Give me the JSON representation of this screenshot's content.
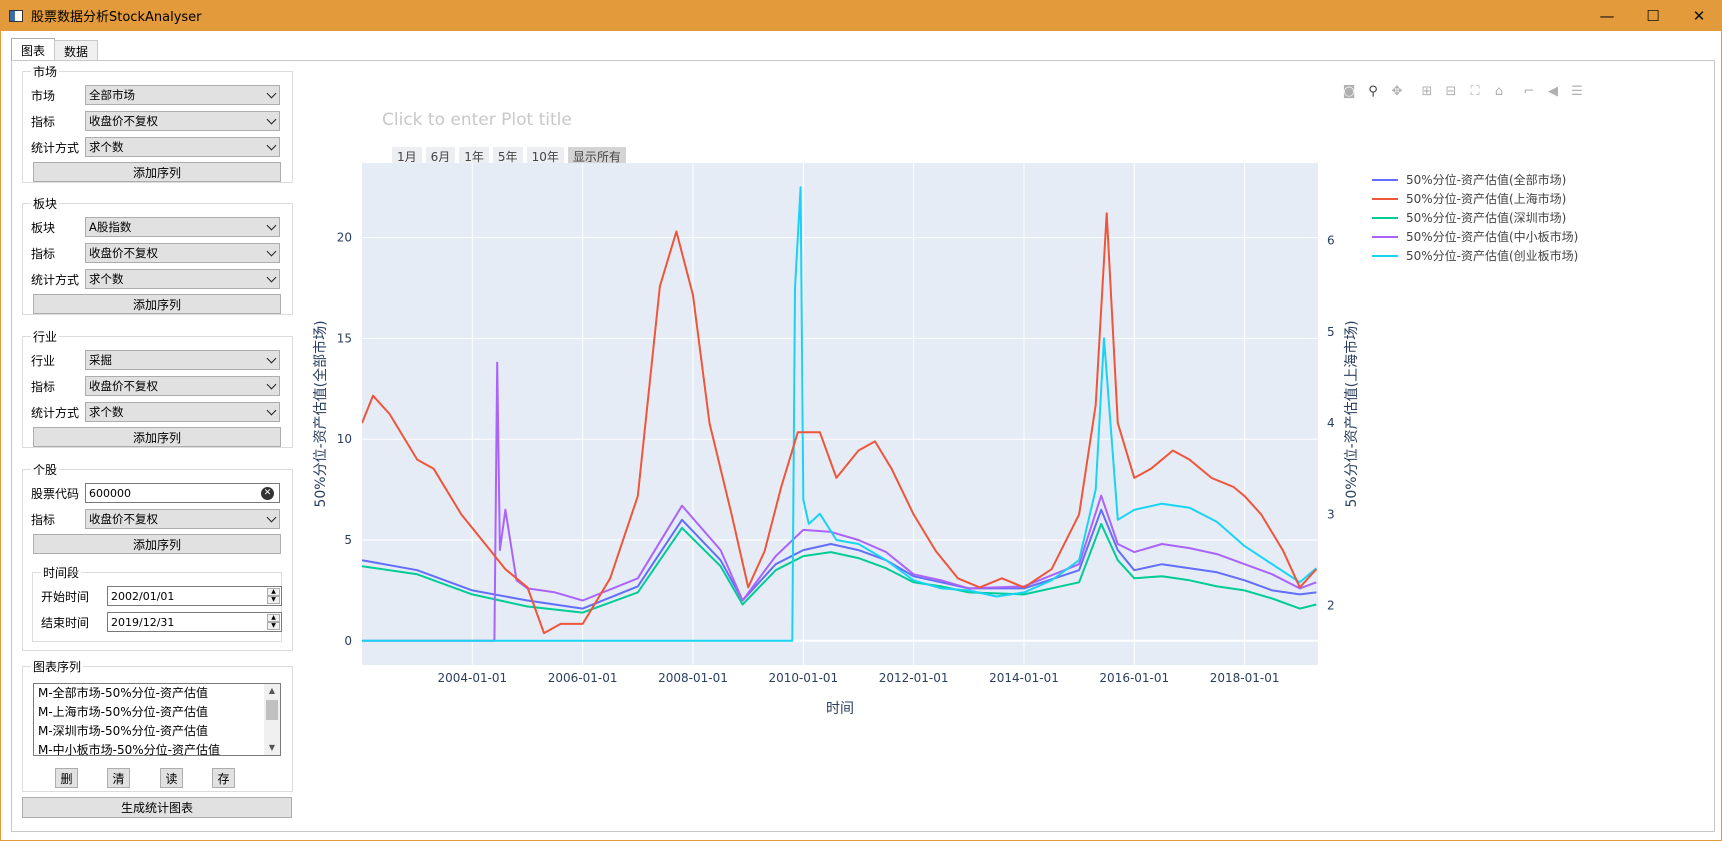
{
  "window": {
    "title": "股票数据分析StockAnalyser",
    "controls": [
      "—",
      "☐",
      "✕"
    ]
  },
  "tabs": [
    {
      "label": "图表"
    },
    {
      "label": "数据"
    }
  ],
  "market": {
    "title": "市场",
    "market_label": "市场",
    "market_value": "全部市场",
    "metric_label": "指标",
    "metric_value": "收盘价不复权",
    "stat_label": "统计方式",
    "stat_value": "求个数",
    "add_label": "添加序列"
  },
  "sector": {
    "title": "板块",
    "sector_label": "板块",
    "sector_value": "A股指数",
    "metric_label": "指标",
    "metric_value": "收盘价不复权",
    "stat_label": "统计方式",
    "stat_value": "求个数",
    "add_label": "添加序列"
  },
  "industry": {
    "title": "行业",
    "industry_label": "行业",
    "industry_value": "采掘",
    "metric_label": "指标",
    "metric_value": "收盘价不复权",
    "stat_label": "统计方式",
    "stat_value": "求个数",
    "add_label": "添加序列"
  },
  "stock": {
    "title": "个股",
    "code_label": "股票代码",
    "code_value": "600000",
    "metric_label": "指标",
    "metric_value": "收盘价不复权",
    "add_label": "添加序列"
  },
  "period": {
    "title": "时间段",
    "start_label": "开始时间",
    "start_value": "2002/01/01",
    "end_label": "结束时间",
    "end_value": "2019/12/31"
  },
  "series_list": {
    "title": "图表序列",
    "items": [
      "M-全部市场-50%分位-资产估值",
      "M-上海市场-50%分位-资产估值",
      "M-深圳市场-50%分位-资产估值",
      "M-中小板市场-50%分位-资产估值"
    ],
    "buttons": [
      "删",
      "清",
      "读",
      "存"
    ]
  },
  "generate_label": "生成统计图表",
  "plot": {
    "title_placeholder": "Click to enter Plot title",
    "range_buttons": [
      "1月",
      "6月",
      "1年",
      "5年",
      "10年",
      "显示所有"
    ],
    "modebar_icons": [
      "camera-icon",
      "zoom-icon",
      "pan-icon",
      "zoom-in-icon",
      "zoom-out-icon",
      "autoscale-icon",
      "home-icon",
      "spike-icon",
      "hover-closest-icon",
      "hover-compare-icon"
    ]
  },
  "chart_data": {
    "type": "line",
    "title": "",
    "xlabel": "时间",
    "ylabel": "50%分位-资产估值(全部市场)",
    "y2label": "50%分位-资产估值(上海市场)",
    "x_ticks": [
      "2004-01-01",
      "2006-01-01",
      "2008-01-01",
      "2010-01-01",
      "2012-01-01",
      "2014-01-01",
      "2016-01-01",
      "2018-01-01"
    ],
    "y_ticks": [
      "0",
      "5",
      "10",
      "15",
      "20"
    ],
    "y2_ticks": [
      "2",
      "3",
      "4",
      "5",
      "6"
    ],
    "ylim": [
      -1.2,
      23.7
    ],
    "y2lim": [
      1.35,
      6.85
    ],
    "x_range": [
      "2002-01-01",
      "2019-05-01"
    ],
    "legend_position": "top-right",
    "series": [
      {
        "name": "50%分位-资产估值(全部市场)",
        "color": "#636efa",
        "axis": "y",
        "x": [
          2002.0,
          2003.0,
          2004.0,
          2005.0,
          2006.0,
          2007.0,
          2007.8,
          2008.5,
          2008.9,
          2009.5,
          2010.0,
          2010.5,
          2011.0,
          2011.5,
          2012.0,
          2012.5,
          2013.0,
          2014.0,
          2015.0,
          2015.4,
          2015.7,
          2016.0,
          2016.5,
          2017.0,
          2017.5,
          2018.0,
          2018.5,
          2019.0,
          2019.3
        ],
        "values": [
          4.0,
          3.5,
          2.5,
          2.0,
          1.6,
          2.7,
          6.0,
          4.0,
          2.0,
          3.8,
          4.5,
          4.8,
          4.5,
          4.0,
          3.2,
          2.9,
          2.6,
          2.6,
          3.5,
          6.5,
          4.5,
          3.5,
          3.8,
          3.6,
          3.4,
          3.0,
          2.5,
          2.3,
          2.4
        ]
      },
      {
        "name": "50%分位-资产估值(上海市场)",
        "color": "#ef553b",
        "axis": "y2",
        "x": [
          2002.0,
          2002.2,
          2002.5,
          2003.0,
          2003.3,
          2003.8,
          2004.2,
          2004.6,
          2005.0,
          2005.3,
          2005.6,
          2006.0,
          2006.5,
          2007.0,
          2007.4,
          2007.7,
          2008.0,
          2008.3,
          2008.7,
          2009.0,
          2009.3,
          2009.6,
          2009.9,
          2010.3,
          2010.6,
          2011.0,
          2011.3,
          2011.6,
          2012.0,
          2012.4,
          2012.8,
          2013.2,
          2013.6,
          2014.0,
          2014.5,
          2015.0,
          2015.3,
          2015.5,
          2015.7,
          2016.0,
          2016.3,
          2016.7,
          2017.0,
          2017.4,
          2017.8,
          2018.0,
          2018.3,
          2018.7,
          2019.0,
          2019.3
        ],
        "values": [
          4.0,
          4.3,
          4.1,
          3.6,
          3.5,
          3.0,
          2.7,
          2.4,
          2.2,
          1.7,
          1.8,
          1.8,
          2.3,
          3.2,
          5.5,
          6.1,
          5.4,
          4.0,
          3.0,
          2.2,
          2.6,
          3.3,
          3.9,
          3.9,
          3.4,
          3.7,
          3.8,
          3.5,
          3.0,
          2.6,
          2.3,
          2.2,
          2.3,
          2.2,
          2.4,
          3.0,
          4.2,
          6.3,
          4.0,
          3.4,
          3.5,
          3.7,
          3.6,
          3.4,
          3.3,
          3.2,
          3.0,
          2.6,
          2.2,
          2.4
        ]
      },
      {
        "name": "50%分位-资产估值(深圳市场)",
        "color": "#00cc96",
        "axis": "y",
        "x": [
          2002.0,
          2003.0,
          2004.0,
          2005.0,
          2006.0,
          2007.0,
          2007.8,
          2008.5,
          2008.9,
          2009.5,
          2010.0,
          2010.5,
          2011.0,
          2011.5,
          2012.0,
          2012.5,
          2013.0,
          2014.0,
          2015.0,
          2015.4,
          2015.7,
          2016.0,
          2016.5,
          2017.0,
          2017.5,
          2018.0,
          2018.5,
          2019.0,
          2019.3
        ],
        "values": [
          3.7,
          3.3,
          2.3,
          1.7,
          1.4,
          2.4,
          5.6,
          3.7,
          1.8,
          3.5,
          4.2,
          4.4,
          4.1,
          3.6,
          2.9,
          2.7,
          2.4,
          2.3,
          2.9,
          5.8,
          4.0,
          3.1,
          3.2,
          3.0,
          2.7,
          2.5,
          2.1,
          1.6,
          1.8
        ]
      },
      {
        "name": "50%分位-资产估值(中小板市场)",
        "color": "#ab63fa",
        "axis": "y",
        "x": [
          2002.0,
          2004.4,
          2004.45,
          2004.5,
          2004.6,
          2004.8,
          2005.0,
          2005.5,
          2006.0,
          2007.0,
          2007.8,
          2008.5,
          2008.9,
          2009.5,
          2010.0,
          2010.5,
          2011.0,
          2011.5,
          2012.0,
          2012.5,
          2013.0,
          2014.0,
          2015.0,
          2015.4,
          2015.7,
          2016.0,
          2016.5,
          2017.0,
          2017.5,
          2018.0,
          2018.5,
          2019.0,
          2019.3
        ],
        "values": [
          0,
          0,
          13.8,
          4.5,
          6.5,
          3.0,
          2.6,
          2.4,
          2.0,
          3.1,
          6.7,
          4.5,
          2.0,
          4.2,
          5.5,
          5.4,
          5.0,
          4.4,
          3.3,
          3.0,
          2.6,
          2.7,
          3.8,
          7.2,
          4.8,
          4.4,
          4.8,
          4.6,
          4.3,
          3.8,
          3.3,
          2.6,
          2.9
        ]
      },
      {
        "name": "50%分位-资产估值(创业板市场)",
        "color": "#19d3f3",
        "axis": "y",
        "x": [
          2002.0,
          2009.8,
          2009.85,
          2009.95,
          2010.0,
          2010.1,
          2010.3,
          2010.6,
          2011.0,
          2011.5,
          2012.0,
          2012.5,
          2013.0,
          2013.5,
          2014.0,
          2014.5,
          2015.0,
          2015.3,
          2015.45,
          2015.7,
          2016.0,
          2016.5,
          2017.0,
          2017.5,
          2018.0,
          2018.5,
          2019.0,
          2019.3
        ],
        "values": [
          0,
          0,
          17.5,
          22.5,
          7.0,
          5.8,
          6.3,
          5.0,
          4.8,
          4.0,
          3.0,
          2.6,
          2.5,
          2.2,
          2.4,
          3.0,
          4.0,
          7.5,
          15.0,
          6.0,
          6.5,
          6.8,
          6.6,
          5.9,
          4.7,
          3.8,
          2.9,
          3.6
        ]
      }
    ]
  }
}
